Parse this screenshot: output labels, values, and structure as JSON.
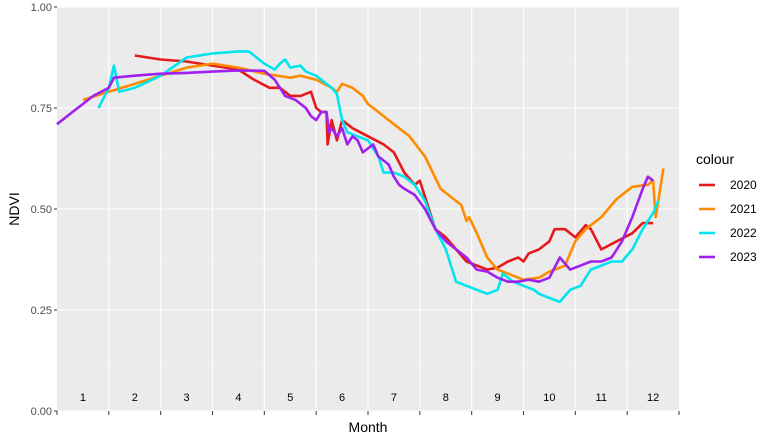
{
  "chart_data": {
    "type": "line",
    "xlabel": "Month",
    "ylabel": "NDVI",
    "legend_title": "colour",
    "legend_position": "right",
    "grid": true,
    "xlim": [
      0.5,
      12.5
    ],
    "ylim": [
      0,
      1
    ],
    "y_ticks": [
      "0.00",
      "0.25",
      "0.50",
      "0.75",
      "1.00"
    ],
    "month_labels": [
      "1",
      "2",
      "3",
      "4",
      "5",
      "6",
      "7",
      "8",
      "9",
      "10",
      "11",
      "12"
    ],
    "series": [
      {
        "name": "2020",
        "color": "#e41a1c",
        "points": [
          [
            2.0,
            0.88
          ],
          [
            2.5,
            0.87
          ],
          [
            3.0,
            0.865
          ],
          [
            3.5,
            0.855
          ],
          [
            4.0,
            0.845
          ],
          [
            4.3,
            0.82
          ],
          [
            4.6,
            0.8
          ],
          [
            4.8,
            0.8
          ],
          [
            5.0,
            0.78
          ],
          [
            5.2,
            0.78
          ],
          [
            5.4,
            0.79
          ],
          [
            5.5,
            0.75
          ],
          [
            5.6,
            0.74
          ],
          [
            5.7,
            0.74
          ],
          [
            5.72,
            0.66
          ],
          [
            5.8,
            0.72
          ],
          [
            5.9,
            0.67
          ],
          [
            6.0,
            0.72
          ],
          [
            6.2,
            0.7
          ],
          [
            6.5,
            0.68
          ],
          [
            6.8,
            0.66
          ],
          [
            7.0,
            0.64
          ],
          [
            7.2,
            0.59
          ],
          [
            7.4,
            0.56
          ],
          [
            7.5,
            0.57
          ],
          [
            7.6,
            0.53
          ],
          [
            7.8,
            0.45
          ],
          [
            8.0,
            0.43
          ],
          [
            8.2,
            0.4
          ],
          [
            8.4,
            0.37
          ],
          [
            8.6,
            0.36
          ],
          [
            8.8,
            0.35
          ],
          [
            9.0,
            0.355
          ],
          [
            9.2,
            0.37
          ],
          [
            9.4,
            0.38
          ],
          [
            9.5,
            0.37
          ],
          [
            9.6,
            0.39
          ],
          [
            9.8,
            0.4
          ],
          [
            10.0,
            0.42
          ],
          [
            10.1,
            0.45
          ],
          [
            10.3,
            0.45
          ],
          [
            10.5,
            0.43
          ],
          [
            10.7,
            0.46
          ],
          [
            10.8,
            0.45
          ],
          [
            11.0,
            0.4
          ],
          [
            11.3,
            0.42
          ],
          [
            11.6,
            0.44
          ],
          [
            11.8,
            0.465
          ],
          [
            12.0,
            0.465
          ]
        ]
      },
      {
        "name": "2021",
        "color": "#ff8c00",
        "points": [
          [
            1.0,
            0.77
          ],
          [
            1.5,
            0.79
          ],
          [
            2.0,
            0.81
          ],
          [
            2.5,
            0.83
          ],
          [
            3.0,
            0.85
          ],
          [
            3.5,
            0.86
          ],
          [
            4.0,
            0.85
          ],
          [
            4.5,
            0.835
          ],
          [
            5.0,
            0.825
          ],
          [
            5.2,
            0.83
          ],
          [
            5.5,
            0.82
          ],
          [
            5.8,
            0.8
          ],
          [
            5.9,
            0.79
          ],
          [
            6.0,
            0.81
          ],
          [
            6.2,
            0.8
          ],
          [
            6.4,
            0.78
          ],
          [
            6.5,
            0.76
          ],
          [
            6.8,
            0.73
          ],
          [
            7.0,
            0.71
          ],
          [
            7.3,
            0.68
          ],
          [
            7.6,
            0.63
          ],
          [
            7.9,
            0.55
          ],
          [
            8.1,
            0.53
          ],
          [
            8.3,
            0.51
          ],
          [
            8.4,
            0.47
          ],
          [
            8.45,
            0.48
          ],
          [
            8.6,
            0.44
          ],
          [
            8.8,
            0.38
          ],
          [
            9.0,
            0.35
          ],
          [
            9.2,
            0.34
          ],
          [
            9.5,
            0.325
          ],
          [
            9.8,
            0.33
          ],
          [
            10.0,
            0.345
          ],
          [
            10.3,
            0.36
          ],
          [
            10.5,
            0.42
          ],
          [
            10.7,
            0.45
          ],
          [
            11.0,
            0.48
          ],
          [
            11.3,
            0.525
          ],
          [
            11.6,
            0.555
          ],
          [
            11.9,
            0.56
          ],
          [
            12.0,
            0.57
          ],
          [
            12.05,
            0.48
          ],
          [
            12.1,
            0.52
          ],
          [
            12.2,
            0.6
          ]
        ]
      },
      {
        "name": "2022",
        "color": "#00e5ee",
        "points": [
          [
            1.3,
            0.75
          ],
          [
            1.5,
            0.8
          ],
          [
            1.6,
            0.855
          ],
          [
            1.7,
            0.79
          ],
          [
            2.0,
            0.8
          ],
          [
            2.5,
            0.83
          ],
          [
            3.0,
            0.875
          ],
          [
            3.5,
            0.885
          ],
          [
            4.0,
            0.89
          ],
          [
            4.2,
            0.89
          ],
          [
            4.5,
            0.86
          ],
          [
            4.7,
            0.845
          ],
          [
            4.8,
            0.86
          ],
          [
            4.9,
            0.87
          ],
          [
            5.0,
            0.85
          ],
          [
            5.2,
            0.855
          ],
          [
            5.3,
            0.84
          ],
          [
            5.5,
            0.83
          ],
          [
            5.7,
            0.81
          ],
          [
            5.8,
            0.8
          ],
          [
            5.9,
            0.785
          ],
          [
            6.0,
            0.72
          ],
          [
            6.1,
            0.69
          ],
          [
            6.3,
            0.68
          ],
          [
            6.5,
            0.67
          ],
          [
            6.7,
            0.63
          ],
          [
            6.8,
            0.59
          ],
          [
            7.0,
            0.59
          ],
          [
            7.2,
            0.58
          ],
          [
            7.4,
            0.56
          ],
          [
            7.6,
            0.52
          ],
          [
            7.8,
            0.45
          ],
          [
            8.0,
            0.4
          ],
          [
            8.2,
            0.32
          ],
          [
            8.4,
            0.31
          ],
          [
            8.6,
            0.3
          ],
          [
            8.8,
            0.29
          ],
          [
            9.0,
            0.3
          ],
          [
            9.1,
            0.34
          ],
          [
            9.3,
            0.32
          ],
          [
            9.5,
            0.31
          ],
          [
            9.7,
            0.3
          ],
          [
            9.8,
            0.29
          ],
          [
            10.0,
            0.28
          ],
          [
            10.2,
            0.27
          ],
          [
            10.4,
            0.3
          ],
          [
            10.6,
            0.31
          ],
          [
            10.8,
            0.35
          ],
          [
            11.0,
            0.36
          ],
          [
            11.2,
            0.37
          ],
          [
            11.4,
            0.37
          ],
          [
            11.6,
            0.4
          ],
          [
            11.8,
            0.45
          ],
          [
            12.0,
            0.49
          ],
          [
            12.1,
            0.52
          ]
        ]
      },
      {
        "name": "2023",
        "color": "#a020f0",
        "points": [
          [
            0.5,
            0.71
          ],
          [
            0.8,
            0.74
          ],
          [
            1.0,
            0.76
          ],
          [
            1.2,
            0.78
          ],
          [
            1.5,
            0.8
          ],
          [
            1.6,
            0.825
          ],
          [
            2.0,
            0.83
          ],
          [
            2.5,
            0.835
          ],
          [
            3.0,
            0.837
          ],
          [
            3.5,
            0.84
          ],
          [
            4.0,
            0.843
          ],
          [
            4.5,
            0.842
          ],
          [
            4.7,
            0.82
          ],
          [
            4.9,
            0.78
          ],
          [
            5.1,
            0.77
          ],
          [
            5.3,
            0.75
          ],
          [
            5.4,
            0.73
          ],
          [
            5.5,
            0.72
          ],
          [
            5.6,
            0.74
          ],
          [
            5.7,
            0.74
          ],
          [
            5.75,
            0.69
          ],
          [
            5.8,
            0.7
          ],
          [
            5.9,
            0.68
          ],
          [
            6.0,
            0.7
          ],
          [
            6.1,
            0.66
          ],
          [
            6.2,
            0.68
          ],
          [
            6.3,
            0.67
          ],
          [
            6.4,
            0.64
          ],
          [
            6.6,
            0.66
          ],
          [
            6.7,
            0.63
          ],
          [
            6.8,
            0.62
          ],
          [
            6.9,
            0.61
          ],
          [
            7.0,
            0.58
          ],
          [
            7.1,
            0.56
          ],
          [
            7.2,
            0.55
          ],
          [
            7.4,
            0.535
          ],
          [
            7.6,
            0.5
          ],
          [
            7.8,
            0.45
          ],
          [
            8.0,
            0.42
          ],
          [
            8.2,
            0.4
          ],
          [
            8.4,
            0.38
          ],
          [
            8.6,
            0.35
          ],
          [
            8.8,
            0.345
          ],
          [
            9.0,
            0.33
          ],
          [
            9.2,
            0.32
          ],
          [
            9.4,
            0.32
          ],
          [
            9.6,
            0.325
          ],
          [
            9.8,
            0.32
          ],
          [
            10.0,
            0.33
          ],
          [
            10.2,
            0.38
          ],
          [
            10.4,
            0.35
          ],
          [
            10.6,
            0.36
          ],
          [
            10.8,
            0.37
          ],
          [
            11.0,
            0.37
          ],
          [
            11.2,
            0.38
          ],
          [
            11.4,
            0.42
          ],
          [
            11.6,
            0.48
          ],
          [
            11.8,
            0.55
          ],
          [
            11.9,
            0.58
          ],
          [
            12.0,
            0.57
          ]
        ]
      }
    ]
  }
}
